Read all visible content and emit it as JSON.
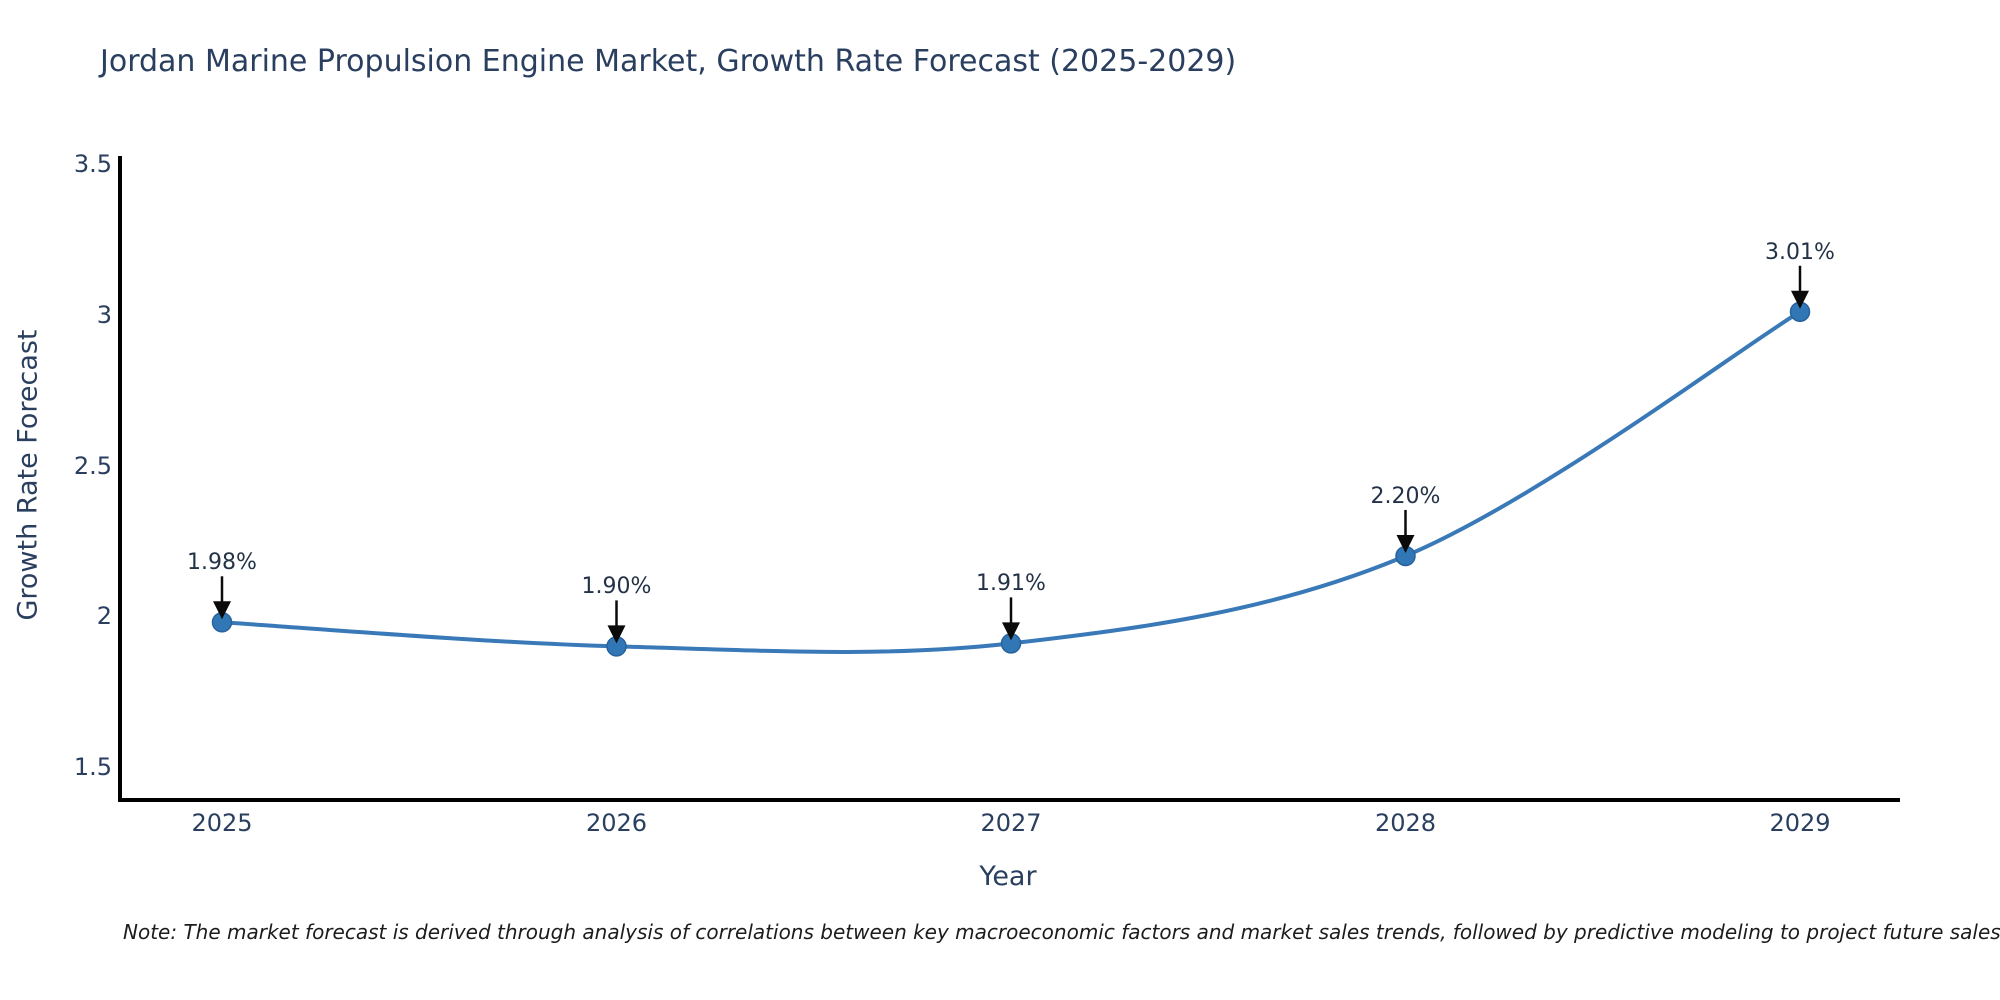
{
  "header": {
    "title": "Jordan Marine Propulsion Engine Market, Growth Rate Forecast (2025-2029)"
  },
  "chart_data": {
    "type": "line",
    "title": "Jordan Marine Propulsion Engine Market, Growth Rate Forecast (2025-2029)",
    "x": [
      2025,
      2026,
      2027,
      2028,
      2029
    ],
    "x_tick_labels": [
      "2025",
      "2026",
      "2027",
      "2028",
      "2029"
    ],
    "series": [
      {
        "name": "Growth Rate Forecast",
        "values": [
          1.98,
          1.9,
          1.91,
          2.2,
          3.01
        ]
      }
    ],
    "point_labels": [
      "1.98%",
      "1.90%",
      "1.91%",
      "2.20%",
      "3.01%"
    ],
    "xlabel": "Year",
    "ylabel": "Growth Rate Forecast",
    "yticks": [
      3.5,
      3,
      2.5,
      2,
      1.5
    ],
    "ytick_labels": [
      "3.5",
      "3",
      "2.5",
      "2",
      "1.5"
    ],
    "ylim": [
      1.39,
      3.52
    ],
    "grid": false,
    "legend_position": "none",
    "curve": "spline",
    "annotation_arrows": true,
    "colors": {
      "line": "#3a79b8",
      "marker_fill": "#3277b5",
      "marker_edge": "#27629c",
      "axis": "#000000",
      "arrow": "#0a0a0a",
      "title_text": "#2a3f5f",
      "tick_text": "#2a3f5f",
      "annotation_text": "#233247",
      "note_text": "#1c1c1c",
      "background": "#ffffff"
    }
  },
  "footer": {
    "note": "Note: The market forecast is derived through analysis of correlations between key macroeconomic factors and market sales trends, followed by predictive modeling to project future sales"
  }
}
